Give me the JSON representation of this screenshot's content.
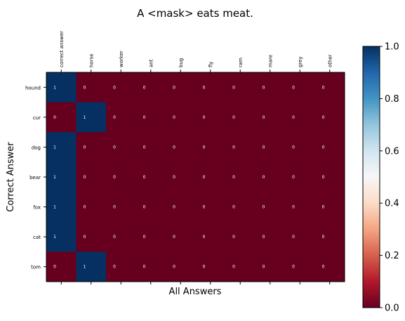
{
  "chart_data": {
    "type": "heatmap",
    "title": "A <mask> eats meat.",
    "xlabel": "All Answers",
    "ylabel": "Correct Answer",
    "x_categories": [
      "correct answer",
      "horse",
      "worker",
      "ant",
      "bug",
      "fly",
      "ram",
      "mare",
      "grey",
      "other"
    ],
    "y_categories": [
      "hound",
      "cur",
      "dog",
      "bear",
      "fox",
      "cat",
      "tom"
    ],
    "values": [
      [
        1,
        0,
        0,
        0,
        0,
        0,
        0,
        0,
        0,
        0
      ],
      [
        0,
        1,
        0,
        0,
        0,
        0,
        0,
        0,
        0,
        0
      ],
      [
        1,
        0,
        0,
        0,
        0,
        0,
        0,
        0,
        0,
        0
      ],
      [
        1,
        0,
        0,
        0,
        0,
        0,
        0,
        0,
        0,
        0
      ],
      [
        1,
        0,
        0,
        0,
        0,
        0,
        0,
        0,
        0,
        0
      ],
      [
        1,
        0,
        0,
        0,
        0,
        0,
        0,
        0,
        0,
        0
      ],
      [
        0,
        1,
        0,
        0,
        0,
        0,
        0,
        0,
        0,
        0
      ]
    ],
    "colormap": "RdBu",
    "color_low": "#67001f",
    "color_high": "#053061",
    "colorbar": {
      "range": [
        0.0,
        1.0
      ],
      "ticks": [
        "0.0",
        "0.2",
        "0.4",
        "0.6",
        "0.8",
        "1.0"
      ]
    },
    "grid": false
  }
}
